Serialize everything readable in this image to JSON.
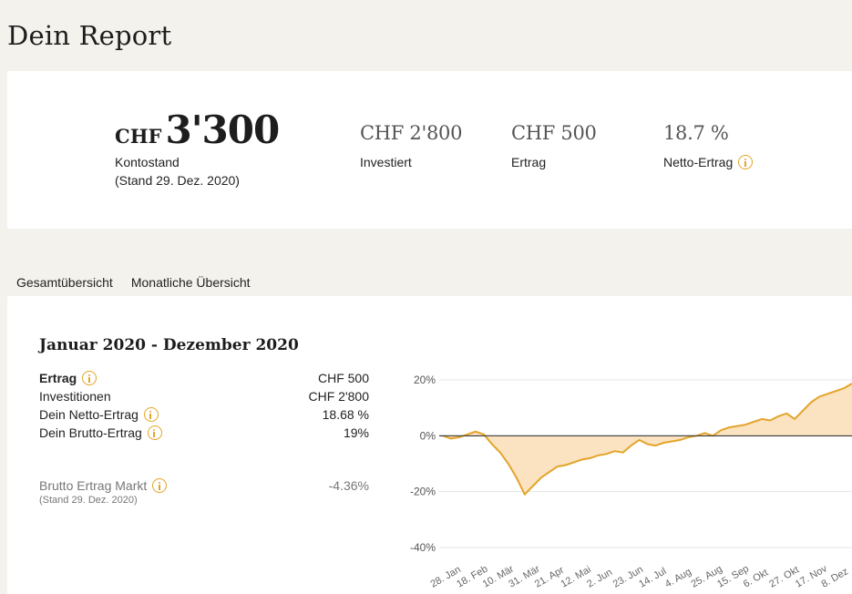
{
  "page_title": "Dein Report",
  "summary": {
    "currency": "CHF",
    "balance": "3'300",
    "balance_label": "Kontostand",
    "balance_date": "(Stand 29. Dez. 2020)",
    "invested_value": "CHF 2'800",
    "invested_label": "Investiert",
    "return_value": "CHF 500",
    "return_label": "Ertrag",
    "net_value": "18.7 %",
    "net_label": "Netto-Ertrag"
  },
  "tabs": [
    {
      "label": "Gesamtübersicht",
      "active": true
    },
    {
      "label": "Monatliche Übersicht",
      "active": false
    }
  ],
  "period": "Januar 2020 - Dezember 2020",
  "metrics": [
    {
      "name": "Ertrag",
      "value": "CHF 500",
      "info": true,
      "bold": true
    },
    {
      "name": "Investitionen",
      "value": "CHF 2'800",
      "info": false,
      "bold": false
    },
    {
      "name": "Dein Netto-Ertrag",
      "value": "18.68 %",
      "info": true,
      "bold": false
    },
    {
      "name": "Dein Brutto-Ertrag",
      "value": "19%",
      "info": true,
      "bold": false
    }
  ],
  "market": {
    "name": "Brutto Ertrag Markt",
    "value": "-4.36%",
    "sub": "(Stand 29. Dez. 2020)"
  },
  "colors": {
    "accent": "#e3a42a",
    "area_fill": "#fbe3c2",
    "background": "#f4f2ed"
  },
  "chart_data": {
    "type": "area",
    "y_ticks": [
      "20%",
      "0%",
      "-20%",
      "-40%"
    ],
    "ylim": [
      -40,
      20
    ],
    "x_ticks": [
      "28. Jan",
      "18. Feb",
      "10. Mär",
      "31. Mär",
      "21. Apr",
      "12. Mai",
      "2. Jun",
      "23. Jun",
      "14. Jul",
      "4. Aug",
      "25. Aug",
      "15. Sep",
      "6. Okt",
      "27. Okt",
      "17. Nov",
      "8. Dez"
    ],
    "grid": true,
    "series": [
      {
        "values": [
          0,
          -1,
          -0.5,
          0.5,
          1.5,
          0.5,
          -3,
          -6,
          -10,
          -15,
          -21,
          -18,
          -15,
          -13,
          -11,
          -10.5,
          -9.5,
          -8.5,
          -8,
          -7,
          -6.5,
          -5.5,
          -6,
          -3.5,
          -1.5,
          -3,
          -3.5,
          -2.5,
          -2,
          -1.5,
          -0.5,
          0,
          1,
          0,
          2,
          3,
          3.5,
          4,
          5,
          6,
          5.5,
          7,
          8,
          6,
          9,
          12,
          14,
          15,
          16,
          17,
          18.7
        ]
      }
    ]
  }
}
